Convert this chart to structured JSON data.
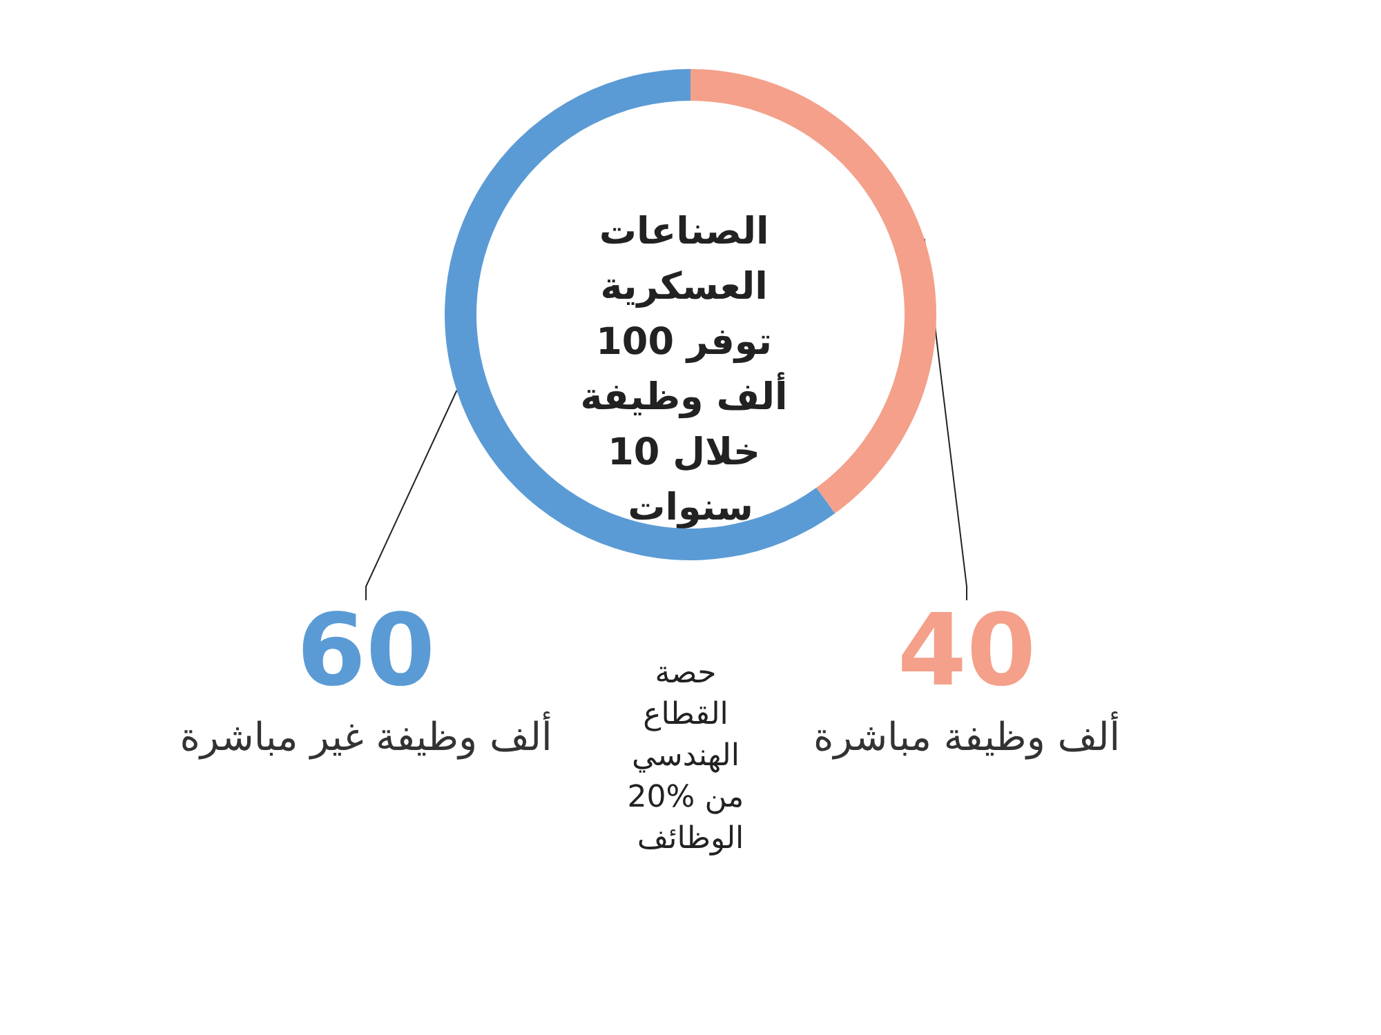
{
  "chart_data": {
    "type": "donut",
    "title": "الصناعات العسكرية توفر 100 ألف وظيفة خلال 10 سنوات",
    "categories": [
      "ألف وظيفة مباشرة",
      "ألف وظيفة غير مباشرة"
    ],
    "values": [
      40,
      60
    ],
    "colors": [
      "#f4a08a",
      "#5b9bd5"
    ],
    "data_labels": true,
    "legend": false,
    "annotations": [
      "حصة القطاع الهندسي 20% من الوظائف"
    ]
  }
}
